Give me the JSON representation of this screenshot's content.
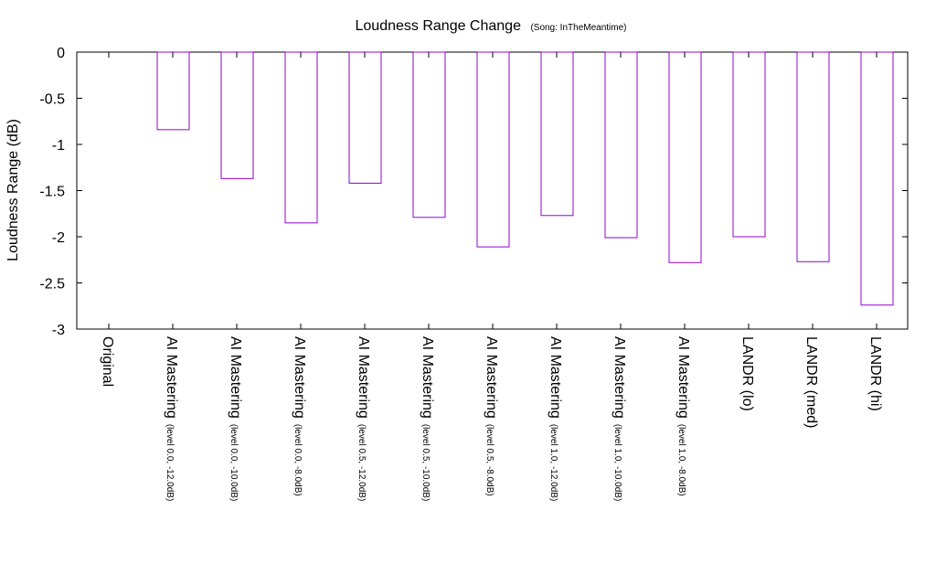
{
  "chart_data": {
    "type": "bar",
    "title": "Loudness Range Change",
    "subtitle": "(Song: InTheMeantime)",
    "xlabel": "",
    "ylabel": "Loudness Range (dB)",
    "ylim": [
      -3,
      0
    ],
    "yticks": [
      0,
      -0.5,
      -1,
      -1.5,
      -2,
      -2.5,
      -3
    ],
    "ytick_labels": [
      "0",
      "-0.5",
      "-1",
      "-1.5",
      "-2",
      "-2.5",
      "-3"
    ],
    "grid": false,
    "bar_color": "#9400d3",
    "categories": [
      {
        "main": "Original",
        "sub": ""
      },
      {
        "main": "AI Mastering",
        "sub": "(level 0.0, -12.0dB)"
      },
      {
        "main": "AI Mastering",
        "sub": "(level 0.0, -10.0dB)"
      },
      {
        "main": "AI Mastering",
        "sub": "(level 0.0, -8.0dB)"
      },
      {
        "main": "AI Mastering",
        "sub": "(level 0.5, -12.0dB)"
      },
      {
        "main": "AI Mastering",
        "sub": "(level 0.5, -10.0dB)"
      },
      {
        "main": "AI Mastering",
        "sub": "(level 0.5, -8.0dB)"
      },
      {
        "main": "AI Mastering",
        "sub": "(level 1.0, -12.0dB)"
      },
      {
        "main": "AI Mastering",
        "sub": "(level 1.0, -10.0dB)"
      },
      {
        "main": "AI Mastering",
        "sub": "(level 1.0, -8.0dB)"
      },
      {
        "main": "LANDR (lo)",
        "sub": ""
      },
      {
        "main": "LANDR (med)",
        "sub": ""
      },
      {
        "main": "LANDR (hi)",
        "sub": ""
      }
    ],
    "values": [
      0,
      -0.84,
      -1.37,
      -1.85,
      -1.42,
      -1.79,
      -2.11,
      -1.77,
      -2.01,
      -2.28,
      -2.0,
      -2.27,
      -2.74
    ]
  }
}
